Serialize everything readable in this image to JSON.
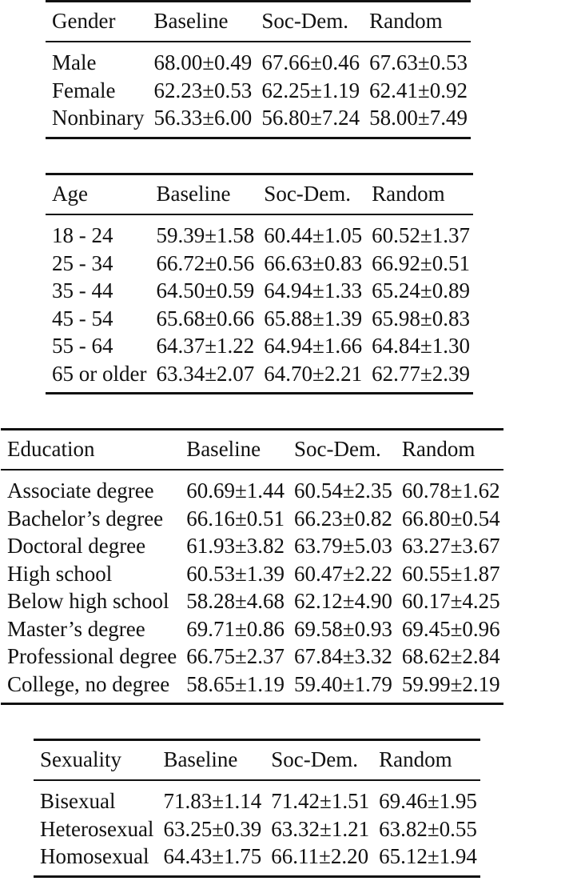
{
  "tables": [
    {
      "id": "gender",
      "header": [
        "Gender",
        "Baseline",
        "Soc-Dem.",
        "Random"
      ],
      "rows": [
        {
          "label": "Male",
          "values": [
            "68.00±0.49",
            "67.66±0.46",
            "67.63±0.53"
          ],
          "bold": 0
        },
        {
          "label": "Female",
          "values": [
            "62.23±0.53",
            "62.25±1.19",
            "62.41±0.92"
          ],
          "bold": 2
        },
        {
          "label": "Nonbinary",
          "values": [
            "56.33±6.00",
            "56.80±7.24",
            "58.00±7.49"
          ],
          "bold": 2
        }
      ]
    },
    {
      "id": "age",
      "header": [
        "Age",
        "Baseline",
        "Soc-Dem.",
        "Random"
      ],
      "rows": [
        {
          "label": "18 - 24",
          "values": [
            "59.39±1.58",
            "60.44±1.05",
            "60.52±1.37"
          ],
          "bold": 2
        },
        {
          "label": "25 - 34",
          "values": [
            "66.72±0.56",
            "66.63±0.83",
            "66.92±0.51"
          ],
          "bold": 2
        },
        {
          "label": "35 - 44",
          "values": [
            "64.50±0.59",
            "64.94±1.33",
            "65.24±0.89"
          ],
          "bold": 2
        },
        {
          "label": "45 - 54",
          "values": [
            "65.68±0.66",
            "65.88±1.39",
            "65.98±0.83"
          ],
          "bold": 2
        },
        {
          "label": "55 - 64",
          "values": [
            "64.37±1.22",
            "64.94±1.66",
            "64.84±1.30"
          ],
          "bold": 1
        },
        {
          "label": "65 or older",
          "values": [
            "63.34±2.07",
            "64.70±2.21",
            "62.77±2.39"
          ],
          "bold": 1
        }
      ]
    },
    {
      "id": "education",
      "header": [
        "Education",
        "Baseline",
        "Soc-Dem.",
        "Random"
      ],
      "rows": [
        {
          "label": "Associate degree",
          "values": [
            "60.69±1.44",
            "60.54±2.35",
            "60.78±1.62"
          ],
          "bold": 2
        },
        {
          "label": "Bachelor’s degree",
          "values": [
            "66.16±0.51",
            "66.23±0.82",
            "66.80±0.54"
          ],
          "bold": 2
        },
        {
          "label": "Doctoral degree",
          "values": [
            "61.93±3.82",
            "63.79±5.03",
            "63.27±3.67"
          ],
          "bold": 1
        },
        {
          "label": "High school",
          "values": [
            "60.53±1.39",
            "60.47±2.22",
            "60.55±1.87"
          ],
          "bold": 2
        },
        {
          "label": "Below high school",
          "values": [
            "58.28±4.68",
            "62.12±4.90",
            "60.17±4.25"
          ],
          "bold": 1
        },
        {
          "label": "Master’s degree",
          "values": [
            "69.71±0.86",
            "69.58±0.93",
            "69.45±0.96"
          ],
          "bold": 0
        },
        {
          "label": "Professional degree",
          "values": [
            "66.75±2.37",
            "67.84±3.32",
            "68.62±2.84"
          ],
          "bold": 2
        },
        {
          "label": "College, no degree",
          "values": [
            "58.65±1.19",
            "59.40±1.79",
            "59.99±2.19"
          ],
          "bold": 2
        }
      ]
    },
    {
      "id": "sexuality",
      "header": [
        "Sexuality",
        "Baseline",
        "Soc-Dem.",
        "Random"
      ],
      "rows": [
        {
          "label": "Bisexual",
          "values": [
            "71.83±1.14",
            "71.42±1.51",
            "69.46±1.95"
          ],
          "bold": 0
        },
        {
          "label": "Heterosexual",
          "values": [
            "63.25±0.39",
            "63.32±1.21",
            "63.82±0.55"
          ],
          "bold": 2
        },
        {
          "label": "Homosexual",
          "values": [
            "64.43±1.75",
            "66.11±2.20",
            "65.12±1.94"
          ],
          "bold": 1
        }
      ]
    }
  ]
}
